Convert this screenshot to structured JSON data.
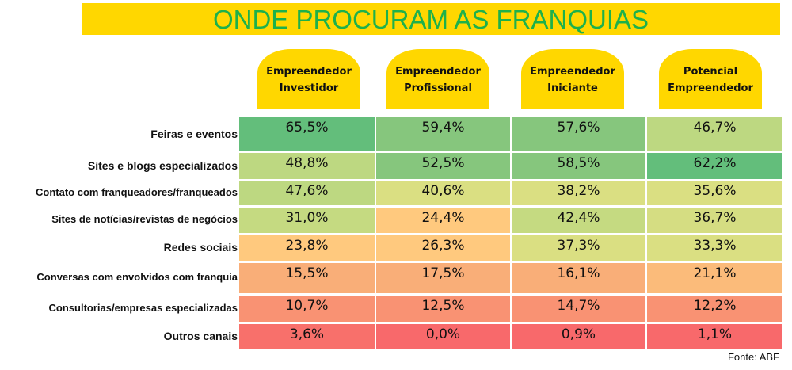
{
  "chart_data": {
    "type": "heatmap",
    "title": "ONDE PROCURAM AS FRANQUIAS",
    "columns": [
      "Empreendedor Investidor",
      "Empreendedor Profissional",
      "Empreendedor Iniciante",
      "Potencial Empreendedor"
    ],
    "columns_lines": [
      [
        "Empreendedor",
        "Investidor"
      ],
      [
        "Empreendedor",
        "Profissional"
      ],
      [
        "Empreendedor",
        "Iniciante"
      ],
      [
        "Potencial",
        "Empreendedor"
      ]
    ],
    "rows": [
      "Feiras e eventos",
      "Sites e blogs especializados",
      "Contato com franqueadores/franqueados",
      "Sites de notícias/revistas de negócios",
      "Redes sociais",
      "Conversas com envolvidos com franquia",
      "Consultorias/empresas especializadas",
      "Outros canais"
    ],
    "values": [
      [
        65.5,
        59.4,
        57.6,
        46.7
      ],
      [
        48.8,
        52.5,
        58.5,
        62.2
      ],
      [
        47.6,
        40.6,
        38.2,
        35.6
      ],
      [
        31.0,
        24.4,
        42.4,
        36.7
      ],
      [
        23.8,
        26.3,
        37.3,
        33.3
      ],
      [
        15.5,
        17.5,
        16.1,
        21.1
      ],
      [
        10.7,
        12.5,
        14.7,
        12.2
      ],
      [
        3.6,
        0.0,
        0.9,
        1.1
      ]
    ],
    "labels": [
      [
        "65,5%",
        "59,4%",
        "57,6%",
        "46,7%"
      ],
      [
        "48,8%",
        "52,5%",
        "58,5%",
        "62,2%"
      ],
      [
        "47,6%",
        "40,6%",
        "38,2%",
        "35,6%"
      ],
      [
        "31,0%",
        "24,4%",
        "42,4%",
        "36,7%"
      ],
      [
        "23,8%",
        "26,3%",
        "37,3%",
        "33,3%"
      ],
      [
        "15,5%",
        "17,5%",
        "16,1%",
        "21,1%"
      ],
      [
        "10,7%",
        "12,5%",
        "14,7%",
        "12,2%"
      ],
      [
        "3,6%",
        "0,0%",
        "0,9%",
        "1,1%"
      ]
    ],
    "colors": [
      [
        "#63BE7B",
        "#86C67D",
        "#86C67D",
        "#BDD881"
      ],
      [
        "#BDD881",
        "#86C67D",
        "#86C67D",
        "#63BE7B"
      ],
      [
        "#BDD881",
        "#DADF82",
        "#DADF82",
        "#DADF82"
      ],
      [
        "#C5DA81",
        "#FFC97E",
        "#C5DA81",
        "#D5DD82"
      ],
      [
        "#FFC97E",
        "#FFC97E",
        "#DADF82",
        "#DADF82"
      ],
      [
        "#F9AE78",
        "#F9AE78",
        "#F9AE78",
        "#FBBB7A"
      ],
      [
        "#F99273",
        "#F99273",
        "#F99273",
        "#F99273"
      ],
      [
        "#F8706B",
        "#F8696B",
        "#F8696B",
        "#F8696B"
      ]
    ],
    "source": "Fonte: ABF"
  }
}
